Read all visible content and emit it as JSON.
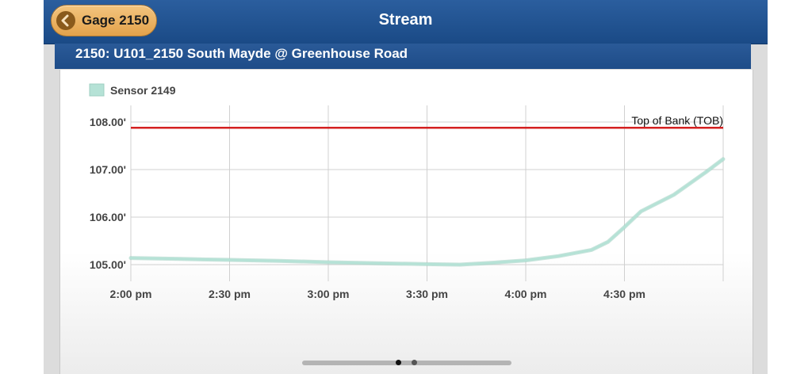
{
  "navbar": {
    "back_label": "Gage 2150",
    "title": "Stream"
  },
  "subheader": {
    "title": "2150: U101_2150 South Mayde @ Greenhouse Road"
  },
  "pager": {
    "pages": 2,
    "active": 0
  },
  "colors": {
    "nav_bg": "#1e4c88",
    "back_button": "#e8ac58",
    "series": "#b5e2d6",
    "tob_line": "#d42020"
  },
  "chart_data": {
    "type": "line",
    "title": "",
    "xlabel": "",
    "ylabel": "",
    "x_ticks": [
      "2:00 pm",
      "2:30 pm",
      "3:00 pm",
      "3:30 pm",
      "4:00 pm",
      "4:30 pm"
    ],
    "y_ticks": [
      "105.00'",
      "106.00'",
      "107.00'",
      "108.00'"
    ],
    "x_range_minutes_from_2pm": [
      0,
      180
    ],
    "ylim": [
      104.65,
      108.35
    ],
    "grid": true,
    "legend": {
      "position": "top-left",
      "entries": [
        "Sensor 2149"
      ]
    },
    "series": [
      {
        "name": "Sensor 2149",
        "x": [
          "2:00 pm",
          "2:15 pm",
          "2:30 pm",
          "2:45 pm",
          "3:00 pm",
          "3:15 pm",
          "3:30 pm",
          "3:40 pm",
          "3:50 pm",
          "4:00 pm",
          "4:10 pm",
          "4:20 pm",
          "4:25 pm",
          "4:30 pm",
          "4:35 pm",
          "4:45 pm",
          "4:55 pm",
          "5:00 pm"
        ],
        "x_minutes": [
          0,
          15,
          30,
          45,
          60,
          75,
          90,
          100,
          110,
          120,
          130,
          140,
          145,
          150,
          155,
          165,
          175,
          180
        ],
        "values": [
          105.14,
          105.12,
          105.1,
          105.08,
          105.05,
          105.03,
          105.01,
          105.0,
          105.04,
          105.09,
          105.18,
          105.31,
          105.48,
          105.79,
          106.12,
          106.47,
          106.96,
          107.22
        ]
      }
    ],
    "reference_lines": [
      {
        "label": "Top of Bank (TOB)",
        "value": 107.88
      }
    ]
  }
}
